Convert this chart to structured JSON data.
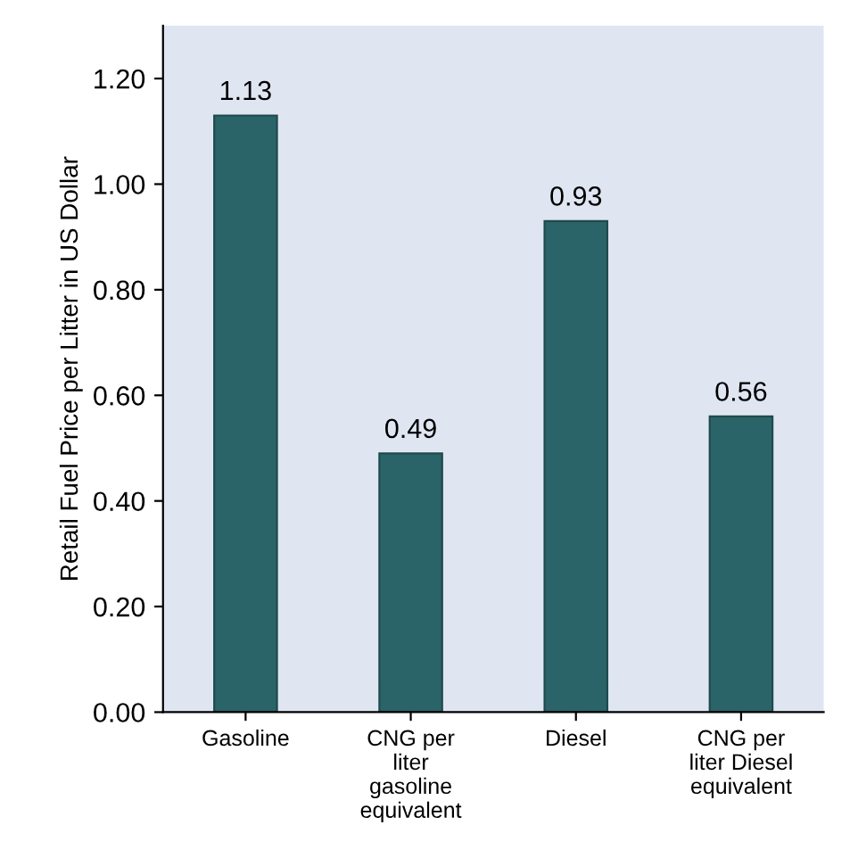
{
  "chart_data": {
    "type": "bar",
    "ylabel": "Retail Fuel Price per Litter in US Dollar",
    "categories": [
      "Gasoline",
      "CNG per\nliter\ngasoline\nequivalent",
      "Diesel",
      "CNG per\nliter Diesel\nequivalent"
    ],
    "values": [
      1.13,
      0.49,
      0.93,
      0.56
    ],
    "color": "#2b6468",
    "ylim": [
      0,
      1.3
    ],
    "yticks": [
      {
        "value": 0,
        "label": "0.00"
      },
      {
        "value": 0.2,
        "label": "0.20"
      },
      {
        "value": 0.4,
        "label": "0.40"
      },
      {
        "value": 0.6,
        "label": "0.60"
      },
      {
        "value": 0.8,
        "label": "0.80"
      },
      {
        "value": 1.0,
        "label": "1.00"
      },
      {
        "value": 1.2,
        "label": "1.20"
      }
    ],
    "data_labels": true,
    "grid": false
  }
}
